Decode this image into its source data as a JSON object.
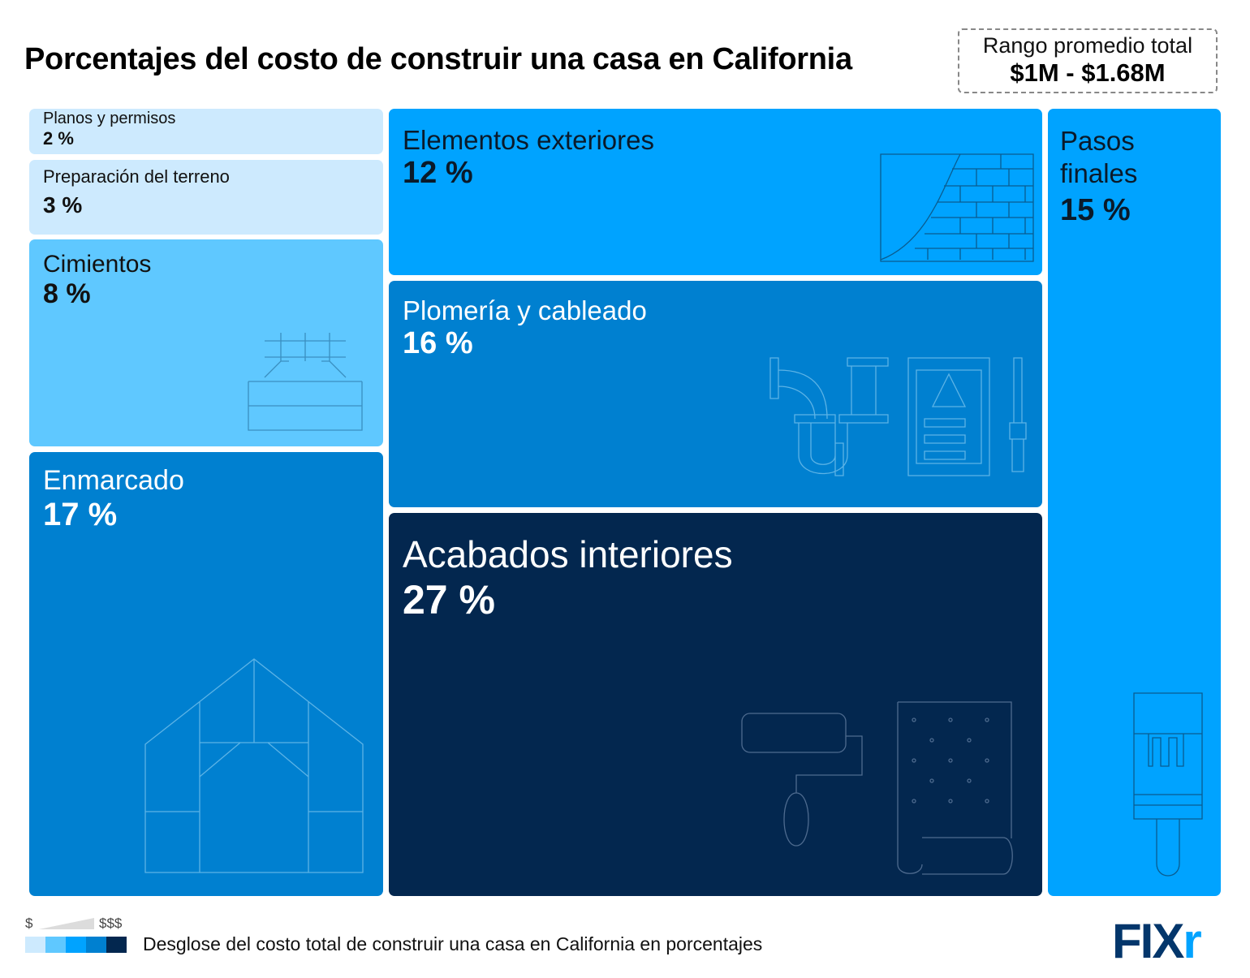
{
  "header": {
    "title": "Porcentajes del costo de construir una casa en California",
    "range_label": "Rango promedio total",
    "range_value": "$1M - $1.68M"
  },
  "chart_data": {
    "type": "treemap",
    "title": "Porcentajes del costo de construir una casa en California",
    "categories": [
      "Planos y permisos",
      "Preparación del terreno",
      "Cimientos",
      "Enmarcado",
      "Elementos exteriores",
      "Plomería y cableado",
      "Acabados interiores",
      "Pasos finales"
    ],
    "values": [
      2,
      3,
      8,
      17,
      12,
      16,
      27,
      15
    ],
    "labels": [
      "2 %",
      "3 %",
      "8 %",
      "17 %",
      "12 %",
      "16 %",
      "27 %",
      "15 %"
    ],
    "colors": [
      "#cdeafe",
      "#cdeafe",
      "#5fc8ff",
      "#0080d0",
      "#00a3ff",
      "#0080d0",
      "#03274f",
      "#00a3ff"
    ],
    "unit": "%"
  },
  "legend": {
    "low": "$",
    "high": "$$$",
    "scale_colors": [
      "#cdeafe",
      "#5fc8ff",
      "#00a3ff",
      "#0080d0",
      "#03274f"
    ],
    "description": "Desglose del costo total de construir una casa en California en porcentajes"
  },
  "brand": {
    "logo_main": "FIX",
    "logo_accent": "r"
  }
}
